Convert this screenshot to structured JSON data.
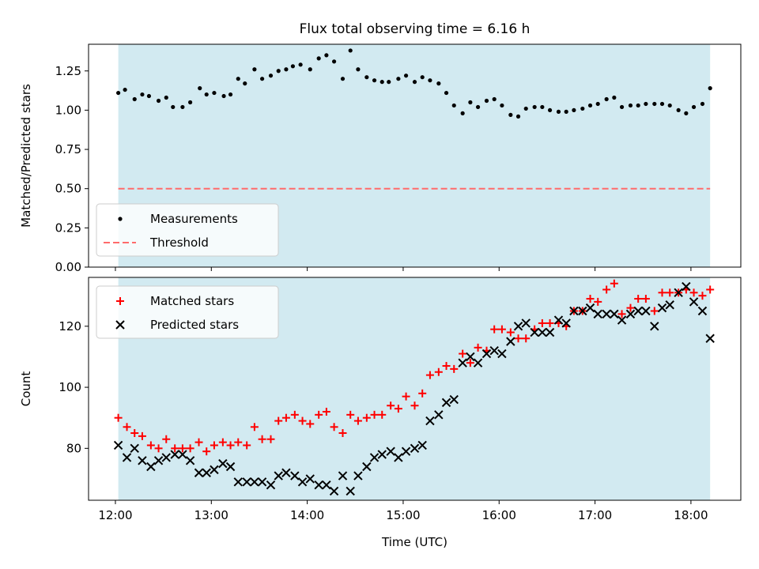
{
  "title": "Flux total observing time = 6.16 h",
  "colors": {
    "observing_band": "#add8e6",
    "measurements": "#000000",
    "threshold": "#ff6b6b",
    "matched": "#ff0000",
    "predicted": "#000000"
  },
  "chart_data": [
    {
      "type": "scatter",
      "ylabel": "Matched/Predicted stars",
      "ylim": [
        0,
        1.42
      ],
      "yticks": [
        "0.00",
        "0.25",
        "0.50",
        "0.75",
        "1.00",
        "1.25"
      ],
      "band": [
        12.03,
        18.2
      ],
      "legend": {
        "placement": "lower-left",
        "entries": [
          "Measurements",
          "Threshold"
        ]
      },
      "threshold": {
        "name": "Threshold",
        "y": 0.5,
        "x": [
          12.03,
          18.2
        ]
      },
      "series": [
        {
          "name": "Measurements",
          "marker": "dot",
          "x": [
            12.03,
            12.1,
            12.2,
            12.28,
            12.35,
            12.45,
            12.53,
            12.6,
            12.7,
            12.78,
            12.88,
            12.95,
            13.03,
            13.13,
            13.2,
            13.28,
            13.35,
            13.45,
            13.53,
            13.62,
            13.7,
            13.78,
            13.85,
            13.93,
            14.03,
            14.12,
            14.2,
            14.28,
            14.37,
            14.45,
            14.53,
            14.62,
            14.7,
            14.78,
            14.85,
            14.95,
            15.03,
            15.12,
            15.2,
            15.28,
            15.37,
            15.45,
            15.53,
            15.62,
            15.7,
            15.78,
            15.87,
            15.95,
            16.03,
            16.12,
            16.2,
            16.28,
            16.37,
            16.45,
            16.53,
            16.62,
            16.7,
            16.78,
            16.87,
            16.95,
            17.03,
            17.12,
            17.2,
            17.28,
            17.37,
            17.45,
            17.53,
            17.62,
            17.7,
            17.78,
            17.87,
            17.95,
            18.03,
            18.12,
            18.2
          ],
          "y": [
            1.11,
            1.13,
            1.07,
            1.1,
            1.09,
            1.06,
            1.08,
            1.02,
            1.02,
            1.05,
            1.14,
            1.1,
            1.11,
            1.09,
            1.1,
            1.2,
            1.17,
            1.26,
            1.2,
            1.22,
            1.25,
            1.26,
            1.28,
            1.29,
            1.26,
            1.33,
            1.35,
            1.31,
            1.2,
            1.38,
            1.26,
            1.21,
            1.19,
            1.18,
            1.18,
            1.2,
            1.22,
            1.18,
            1.21,
            1.19,
            1.17,
            1.11,
            1.03,
            0.98,
            1.05,
            1.02,
            1.06,
            1.07,
            1.03,
            0.97,
            0.96,
            1.01,
            1.02,
            1.02,
            1.0,
            0.99,
            0.99,
            1.0,
            1.01,
            1.03,
            1.04,
            1.07,
            1.08,
            1.02,
            1.03,
            1.03,
            1.04,
            1.04,
            1.04,
            1.03,
            1.0,
            0.98,
            1.02,
            1.04,
            1.14
          ]
        }
      ]
    },
    {
      "type": "scatter",
      "ylabel": "Count",
      "ylim": [
        63,
        136
      ],
      "yticks": [
        "80",
        "100",
        "120"
      ],
      "band": [
        12.03,
        18.2
      ],
      "xlabel": "Time (UTC)",
      "xlim": [
        11.72,
        18.52
      ],
      "xticks": [
        "12:00",
        "13:00",
        "14:00",
        "15:00",
        "16:00",
        "17:00",
        "18:00"
      ],
      "legend": {
        "placement": "upper-left",
        "entries": [
          "Matched stars",
          "Predicted stars"
        ]
      },
      "series": [
        {
          "name": "Matched stars",
          "marker": "plus",
          "x": [
            12.03,
            12.12,
            12.2,
            12.28,
            12.37,
            12.45,
            12.53,
            12.62,
            12.7,
            12.78,
            12.87,
            12.95,
            13.03,
            13.12,
            13.2,
            13.28,
            13.37,
            13.45,
            13.53,
            13.62,
            13.7,
            13.78,
            13.87,
            13.95,
            14.03,
            14.12,
            14.2,
            14.28,
            14.37,
            14.45,
            14.53,
            14.62,
            14.7,
            14.78,
            14.87,
            14.95,
            15.03,
            15.12,
            15.2,
            15.28,
            15.37,
            15.45,
            15.53,
            15.62,
            15.7,
            15.78,
            15.87,
            15.95,
            16.03,
            16.12,
            16.2,
            16.28,
            16.37,
            16.45,
            16.53,
            16.62,
            16.7,
            16.78,
            16.87,
            16.95,
            17.03,
            17.12,
            17.2,
            17.28,
            17.37,
            17.45,
            17.53,
            17.62,
            17.7,
            17.78,
            17.87,
            17.95,
            18.03,
            18.12,
            18.2
          ],
          "y": [
            90,
            87,
            85,
            84,
            81,
            80,
            83,
            80,
            80,
            80,
            82,
            79,
            81,
            82,
            81,
            82,
            81,
            87,
            83,
            83,
            89,
            90,
            91,
            89,
            88,
            91,
            92,
            87,
            85,
            91,
            89,
            90,
            91,
            91,
            94,
            93,
            97,
            94,
            98,
            104,
            105,
            107,
            106,
            111,
            108,
            113,
            112,
            119,
            119,
            118,
            116,
            116,
            119,
            121,
            121,
            121,
            120,
            125,
            125,
            129,
            128,
            132,
            134,
            124,
            126,
            129,
            129,
            125,
            131,
            131,
            131,
            132,
            131,
            130,
            132
          ]
        },
        {
          "name": "Predicted stars",
          "marker": "x",
          "x": [
            12.03,
            12.12,
            12.2,
            12.28,
            12.37,
            12.45,
            12.53,
            12.62,
            12.7,
            12.78,
            12.87,
            12.95,
            13.03,
            13.12,
            13.2,
            13.28,
            13.37,
            13.45,
            13.53,
            13.62,
            13.7,
            13.78,
            13.87,
            13.95,
            14.03,
            14.12,
            14.2,
            14.28,
            14.37,
            14.45,
            14.53,
            14.62,
            14.7,
            14.78,
            14.87,
            14.95,
            15.03,
            15.12,
            15.2,
            15.28,
            15.37,
            15.45,
            15.53,
            15.62,
            15.7,
            15.78,
            15.87,
            15.95,
            16.03,
            16.12,
            16.2,
            16.28,
            16.37,
            16.45,
            16.53,
            16.62,
            16.7,
            16.78,
            16.87,
            16.95,
            17.03,
            17.12,
            17.2,
            17.28,
            17.37,
            17.45,
            17.53,
            17.62,
            17.7,
            17.78,
            17.87,
            17.95,
            18.03,
            18.12,
            18.2
          ],
          "y": [
            81,
            77,
            80,
            76,
            74,
            76,
            77,
            78,
            78,
            76,
            72,
            72,
            73,
            75,
            74,
            69,
            69,
            69,
            69,
            68,
            71,
            72,
            71,
            69,
            70,
            68,
            68,
            66,
            71,
            66,
            71,
            74,
            77,
            78,
            79,
            77,
            79,
            80,
            81,
            89,
            91,
            95,
            96,
            108,
            110,
            108,
            111,
            112,
            111,
            115,
            120,
            121,
            118,
            118,
            118,
            122,
            121,
            125,
            125,
            126,
            124,
            124,
            124,
            122,
            124,
            125,
            125,
            120,
            126,
            127,
            131,
            133,
            128,
            125,
            116
          ]
        }
      ]
    }
  ]
}
